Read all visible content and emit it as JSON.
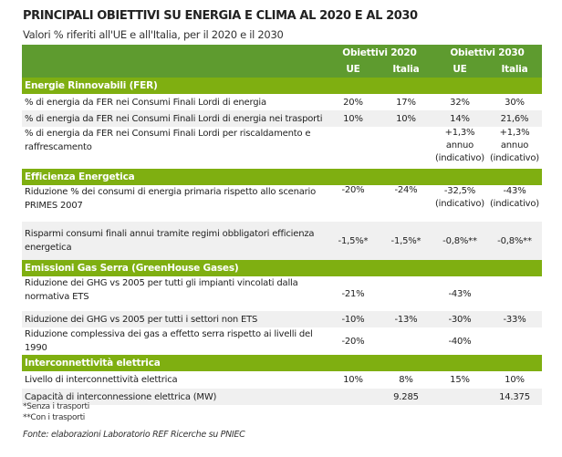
{
  "title": "PRINCIPALI OBIETTIVI SU ENERGIA E CLIMA AL 2020 E AL 2030",
  "subtitle": "Valori % riferiti all'UE e all'Italia, per il 2020 e il 2030",
  "header": {
    "group_2020": "Obiettivi 2020",
    "group_2030": "Obiettivi 2030",
    "ue": "UE",
    "italia": "Italia"
  },
  "sections": [
    {
      "title": "Energie Rinnovabili (FER)",
      "rows": [
        {
          "label": "% di energia da FER nei Consumi Finali Lordi di energia",
          "values": [
            "20%",
            "17%",
            "32%",
            "30%"
          ]
        },
        {
          "label": "% di energia da FER nei Consumi Finali Lordi di energia nei trasporti",
          "values": [
            "10%",
            "10%",
            "14%",
            "21,6%"
          ]
        },
        {
          "label": "% di energia da FER nei Consumi Finali Lordi per riscaldamento e raffrescamento",
          "values": [
            "",
            "",
            "+1,3% annuo (indicativo)",
            "+1,3% annuo (indicativo)"
          ]
        }
      ]
    },
    {
      "title": "Efficienza Energetica",
      "rows": [
        {
          "label": "Riduzione % dei consumi di energia primaria rispetto allo scenario PRIMES 2007",
          "values": [
            "-20%",
            "-24%",
            "-32,5% (indicativo)",
            "-43% (indicativo)"
          ]
        },
        {
          "label": "Risparmi consumi finali annui tramite regimi obbligatori efficienza energetica",
          "values": [
            "-1,5%*",
            "-1,5%*",
            "-0,8%**",
            "-0,8%**"
          ]
        }
      ]
    },
    {
      "title": "Emissioni Gas Serra (GreenHouse Gases)",
      "rows": [
        {
          "label": "Riduzione dei GHG vs 2005 per tutti gli impianti vincolati dalla normativa ETS",
          "values": [
            "-21%",
            "",
            "-43%",
            ""
          ]
        },
        {
          "label": "Riduzione dei GHG vs 2005 per tutti i settori non ETS",
          "values": [
            "-10%",
            "-13%",
            "-30%",
            "-33%"
          ]
        },
        {
          "label": "Riduzione complessiva dei gas a effetto serra rispetto ai livelli del 1990",
          "values": [
            "-20%",
            "",
            "-40%",
            ""
          ]
        }
      ]
    },
    {
      "title": "Interconnettività elettrica",
      "rows": [
        {
          "label": "Livello di interconnettività elettrica",
          "values": [
            "10%",
            "8%",
            "15%",
            "10%"
          ]
        },
        {
          "label": "Capacità di interconnessione elettrica (MW)",
          "values": [
            "",
            "9.285",
            "",
            "14.375"
          ]
        }
      ]
    }
  ],
  "notes": [
    "*Senza i trasporti",
    "**Con i trasporti"
  ],
  "source": "Fonte: elaborazioni Laboratorio REF Ricerche su PNIEC",
  "colors": {
    "header": "#5e9b2f",
    "section": "#7faf11",
    "alt_row": "#f0f0f0"
  }
}
